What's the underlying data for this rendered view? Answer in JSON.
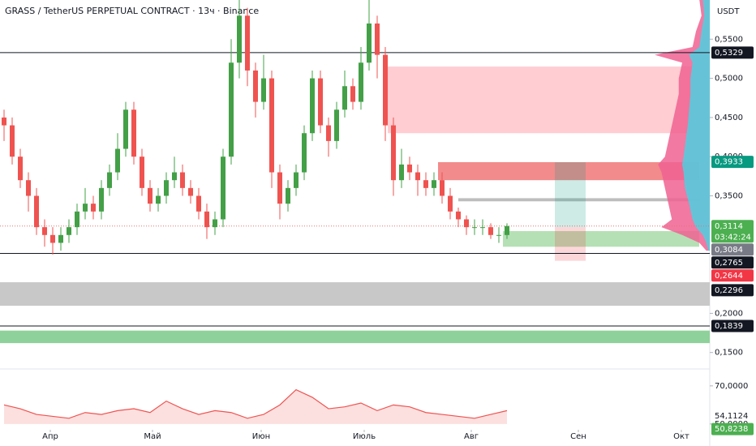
{
  "chart_data": {
    "type": "candlestick",
    "title": "GRASS / TetherUS PERPETUAL CONTRACT · 13ч · Binance",
    "currency": "USDT",
    "up_color": "#43a047",
    "down_color": "#ef5350",
    "x": [
      0,
      1,
      2,
      3,
      4,
      5,
      6,
      7,
      8,
      9,
      10,
      11,
      12,
      13,
      14,
      15,
      16,
      17,
      18,
      19,
      20,
      21,
      22,
      23,
      24,
      25,
      26,
      27,
      28,
      29,
      30,
      31,
      32,
      33,
      34,
      35,
      36,
      37,
      38,
      39,
      40,
      41,
      42,
      43,
      44,
      45,
      46,
      47,
      48,
      49,
      50,
      51,
      52,
      53,
      54,
      55,
      56,
      57,
      58,
      59,
      60,
      61,
      62
    ],
    "open": [
      0.45,
      0.44,
      0.4,
      0.37,
      0.35,
      0.31,
      0.3,
      0.29,
      0.3,
      0.31,
      0.33,
      0.34,
      0.33,
      0.36,
      0.38,
      0.41,
      0.46,
      0.4,
      0.36,
      0.34,
      0.35,
      0.37,
      0.38,
      0.36,
      0.35,
      0.33,
      0.31,
      0.32,
      0.4,
      0.52,
      0.58,
      0.51,
      0.47,
      0.5,
      0.38,
      0.34,
      0.36,
      0.38,
      0.43,
      0.5,
      0.44,
      0.42,
      0.46,
      0.49,
      0.47,
      0.52,
      0.57,
      0.53,
      0.44,
      0.37,
      0.39,
      0.38,
      0.37,
      0.36,
      0.37,
      0.35,
      0.33,
      0.32,
      0.31,
      0.31,
      0.31,
      0.3,
      0.3
    ],
    "high": [
      0.46,
      0.45,
      0.41,
      0.38,
      0.36,
      0.32,
      0.31,
      0.31,
      0.32,
      0.34,
      0.36,
      0.35,
      0.37,
      0.39,
      0.43,
      0.47,
      0.47,
      0.41,
      0.37,
      0.36,
      0.38,
      0.4,
      0.39,
      0.37,
      0.36,
      0.34,
      0.33,
      0.41,
      0.55,
      0.6,
      0.59,
      0.52,
      0.53,
      0.51,
      0.39,
      0.37,
      0.39,
      0.44,
      0.51,
      0.51,
      0.45,
      0.47,
      0.51,
      0.5,
      0.54,
      0.6,
      0.58,
      0.54,
      0.45,
      0.41,
      0.4,
      0.39,
      0.38,
      0.38,
      0.38,
      0.36,
      0.335,
      0.325,
      0.32,
      0.32,
      0.315,
      0.31,
      0.315
    ],
    "low": [
      0.42,
      0.39,
      0.36,
      0.33,
      0.3,
      0.285,
      0.275,
      0.28,
      0.29,
      0.3,
      0.32,
      0.32,
      0.32,
      0.35,
      0.37,
      0.4,
      0.39,
      0.35,
      0.33,
      0.33,
      0.34,
      0.36,
      0.35,
      0.34,
      0.32,
      0.295,
      0.3,
      0.31,
      0.39,
      0.5,
      0.49,
      0.45,
      0.46,
      0.36,
      0.32,
      0.33,
      0.35,
      0.37,
      0.42,
      0.43,
      0.4,
      0.41,
      0.45,
      0.46,
      0.46,
      0.51,
      0.5,
      0.42,
      0.35,
      0.36,
      0.37,
      0.35,
      0.35,
      0.35,
      0.34,
      0.32,
      0.31,
      0.3,
      0.3,
      0.3,
      0.295,
      0.29,
      0.295
    ],
    "close": [
      0.44,
      0.4,
      0.37,
      0.35,
      0.31,
      0.3,
      0.29,
      0.3,
      0.31,
      0.33,
      0.34,
      0.33,
      0.36,
      0.38,
      0.41,
      0.46,
      0.4,
      0.36,
      0.34,
      0.35,
      0.37,
      0.38,
      0.36,
      0.35,
      0.33,
      0.31,
      0.32,
      0.4,
      0.52,
      0.58,
      0.51,
      0.47,
      0.5,
      0.38,
      0.34,
      0.36,
      0.38,
      0.43,
      0.5,
      0.44,
      0.42,
      0.46,
      0.49,
      0.47,
      0.52,
      0.57,
      0.53,
      0.44,
      0.37,
      0.39,
      0.38,
      0.37,
      0.36,
      0.37,
      0.35,
      0.33,
      0.32,
      0.31,
      0.31,
      0.31,
      0.3,
      0.3,
      0.3114
    ],
    "xlim": [
      -0.5,
      87
    ],
    "xticks": [
      {
        "value": 5.7,
        "label": "Апр"
      },
      {
        "value": 18.3,
        "label": "Май"
      },
      {
        "value": 31.7,
        "label": "Июн"
      },
      {
        "value": 44.4,
        "label": "Июль"
      },
      {
        "value": 57.6,
        "label": "Авг"
      },
      {
        "value": 70.8,
        "label": "Сен"
      },
      {
        "value": 83.5,
        "label": "Окт"
      }
    ],
    "ylim": [
      0.129,
      0.6
    ],
    "yticks": [
      {
        "value": 0.55,
        "label": "0,5500"
      },
      {
        "value": 0.5,
        "label": "0,5000"
      },
      {
        "value": 0.45,
        "label": "0,4500"
      },
      {
        "value": 0.4,
        "label": "0,4000"
      },
      {
        "value": 0.35,
        "label": "0,3500"
      },
      {
        "value": 0.2,
        "label": "0,2000"
      },
      {
        "value": 0.15,
        "label": "0,1500"
      }
    ],
    "last_price_line": 0.3114,
    "zones": [
      {
        "from": 47.3,
        "to": 85.7,
        "low": 0.43,
        "high": 0.515,
        "color": "#ffcdd2"
      },
      {
        "from": 53.5,
        "to": 85.7,
        "low": 0.37,
        "high": 0.393,
        "color": "#f28b8b"
      },
      {
        "from": 61.5,
        "to": 85.7,
        "low": 0.285,
        "high": 0.305,
        "color": "#b5e0b5"
      },
      {
        "from": 56,
        "to": 85.7,
        "low": 0.343,
        "high": 0.347,
        "color": "#bdbdbd"
      },
      {
        "from": -0.5,
        "to": 87,
        "low": 0.2097,
        "high": 0.2397,
        "color": "#c8c8c8"
      },
      {
        "from": -0.5,
        "to": 87,
        "low": 0.162,
        "high": 0.178,
        "color": "#8fd19a"
      }
    ],
    "position": {
      "from": 67.9,
      "to": 71.7,
      "entry": 0.31,
      "target": 0.393,
      "stop": 0.267
    },
    "price_labels": [
      {
        "value": 0.5329,
        "label": "0,5329",
        "color": "#131722",
        "line": true
      },
      {
        "value": 0.3933,
        "label": "0,3933",
        "color": "#089981"
      },
      {
        "value": 0.3114,
        "label": "0,3114",
        "sub": "03:42:24",
        "color": "#4caf50"
      },
      {
        "value": 0.3084,
        "label": "0,3084",
        "color": "#787b86"
      },
      {
        "value": 0.2765,
        "label": "0,2765",
        "color": "#131722",
        "line": true
      },
      {
        "value": 0.2644,
        "label": "0,2644",
        "color": "#f23645"
      },
      {
        "value": 0.2296,
        "label": "0,2296",
        "color": "#131722"
      },
      {
        "value": 0.1839,
        "label": "0,1839",
        "color": "#131722",
        "line": true
      }
    ],
    "volume_profile": {
      "prices": [
        0.6,
        0.58,
        0.56,
        0.54,
        0.53,
        0.52,
        0.5,
        0.48,
        0.46,
        0.44,
        0.42,
        0.4,
        0.39,
        0.38,
        0.36,
        0.34,
        0.32,
        0.31,
        0.3,
        0.29,
        0.28
      ],
      "xlim": [
        0,
        100
      ],
      "series": [
        {
          "color": "#f06292",
          "values": [
            15,
            12,
            20,
            25,
            80,
            40,
            45,
            45,
            50,
            55,
            60,
            65,
            75,
            70,
            65,
            60,
            55,
            70,
            40,
            15,
            5
          ]
        },
        {
          "color": "#4dd0e1",
          "values": [
            10,
            8,
            12,
            15,
            30,
            25,
            28,
            28,
            30,
            32,
            35,
            38,
            40,
            38,
            36,
            30,
            25,
            20,
            10,
            5,
            2
          ]
        }
      ]
    },
    "oscillator": {
      "x": [
        0,
        2,
        4,
        6,
        8,
        10,
        12,
        14,
        16,
        18,
        20,
        22,
        24,
        26,
        28,
        30,
        32,
        34,
        36,
        38,
        40,
        42,
        44,
        46,
        48,
        50,
        52,
        54,
        56,
        58,
        60,
        62
      ],
      "values": [
        60,
        58,
        55,
        54,
        53,
        56,
        55,
        57,
        58,
        56,
        62,
        58,
        55,
        57,
        56,
        53,
        55,
        60,
        68,
        64,
        58,
        59,
        61,
        57,
        60,
        59,
        56,
        55,
        54,
        53,
        55,
        57
      ],
      "color": "#ef5350",
      "ylim": [
        47.8,
        77.6
      ],
      "yticks": [
        {
          "value": 70,
          "label": "70,0000"
        },
        {
          "value": 50,
          "label": "50,0000"
        }
      ],
      "markers": [
        {
          "value": 54.1124,
          "label": "54,1124"
        },
        {
          "value": 50.8238,
          "label": "50,8238",
          "color": "#4caf50"
        }
      ]
    }
  }
}
